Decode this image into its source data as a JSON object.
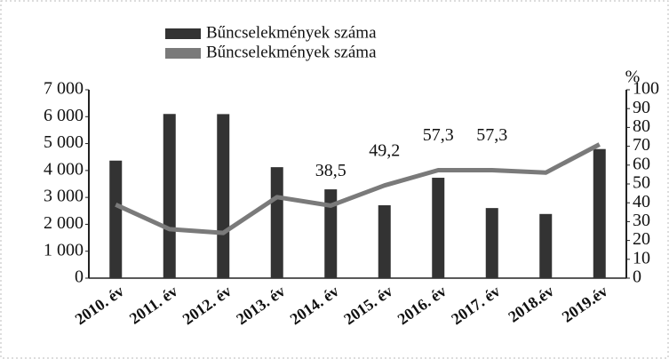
{
  "chart_data": {
    "type": "bar",
    "categories": [
      "2010. év",
      "2011. év",
      "2012. év",
      "2013. év",
      "2014. év",
      "2015. év",
      "2016. év",
      "2017. év",
      "2018.év",
      "2019.év"
    ],
    "series": [
      {
        "name": "Bűncselekmények száma",
        "color": "#333333",
        "values": [
          4367,
          6100,
          6095,
          4123,
          3299,
          2708,
          3730,
          2604,
          2384,
          4797
        ]
      },
      {
        "name": "Bűncselekmények száma",
        "color": "#7a7a7a",
        "axis": "y2",
        "type": "line",
        "values": [
          39,
          26,
          24,
          43,
          38.5,
          49.2,
          57.3,
          57.3,
          56,
          71
        ],
        "value_labels": [
          null,
          null,
          null,
          null,
          "38,5",
          "49,2",
          "57,3",
          "57,3",
          null,
          null
        ]
      }
    ],
    "ylim": [
      0,
      7000
    ],
    "yticks": [
      0,
      {
        "value": 1000,
        "label": "1 000"
      },
      {
        "value": 2000,
        "label": "2 000"
      },
      {
        "value": 3000,
        "label": "3 000"
      },
      {
        "value": 4000,
        "label": "4 000"
      },
      {
        "value": 5000,
        "label": "5 000"
      },
      {
        "value": 6000,
        "label": "6 000"
      },
      {
        "value": 7000,
        "label": "7 000"
      }
    ],
    "y2label": "%",
    "y2lim": [
      0,
      100
    ],
    "y2ticks": [
      0,
      10,
      20,
      30,
      40,
      50,
      60,
      70,
      80,
      90,
      100
    ]
  }
}
